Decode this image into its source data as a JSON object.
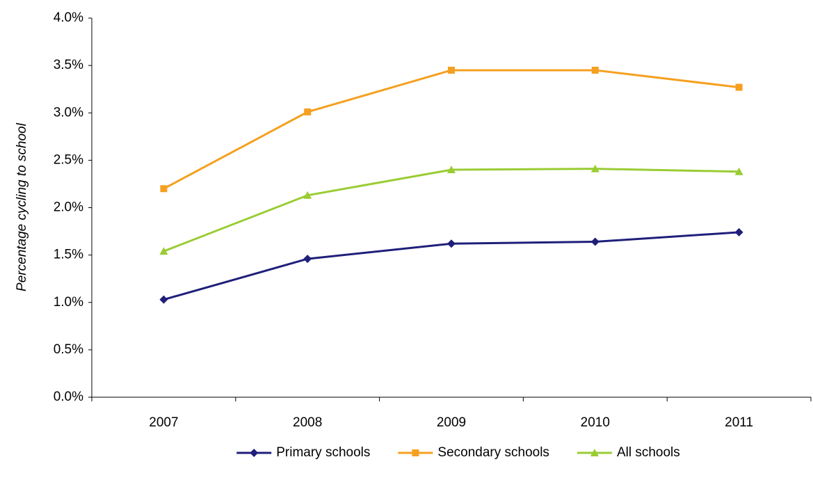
{
  "chart_data": {
    "type": "line",
    "y_label": "Percentage cycling to school",
    "categories": [
      "2007",
      "2008",
      "2009",
      "2010",
      "2011"
    ],
    "series": [
      {
        "name": "Primary schools",
        "color": "#1f1f7a",
        "marker": "diamond",
        "values": [
          1.03,
          1.46,
          1.62,
          1.64,
          1.74
        ]
      },
      {
        "name": "Secondary schools",
        "color": "#f5a020",
        "marker": "square",
        "values": [
          2.2,
          3.01,
          3.45,
          3.45,
          3.27
        ]
      },
      {
        "name": "All schools",
        "color": "#99cc33",
        "marker": "triangle",
        "values": [
          1.54,
          2.13,
          2.4,
          2.41,
          2.38
        ]
      }
    ],
    "ylim": [
      0,
      4
    ],
    "yticks": [
      {
        "value": 0,
        "label": "0.0%"
      },
      {
        "value": 0.5,
        "label": "0.5%"
      },
      {
        "value": 1,
        "label": "1.0%"
      },
      {
        "value": 1.5,
        "label": "1.5%"
      },
      {
        "value": 2,
        "label": "2.0%"
      },
      {
        "value": 2.5,
        "label": "2.5%"
      },
      {
        "value": 3,
        "label": "3.0%"
      },
      {
        "value": 3.5,
        "label": "3.5%"
      },
      {
        "value": 4,
        "label": "4.0%"
      }
    ],
    "grid": false,
    "legend": "bottom"
  }
}
